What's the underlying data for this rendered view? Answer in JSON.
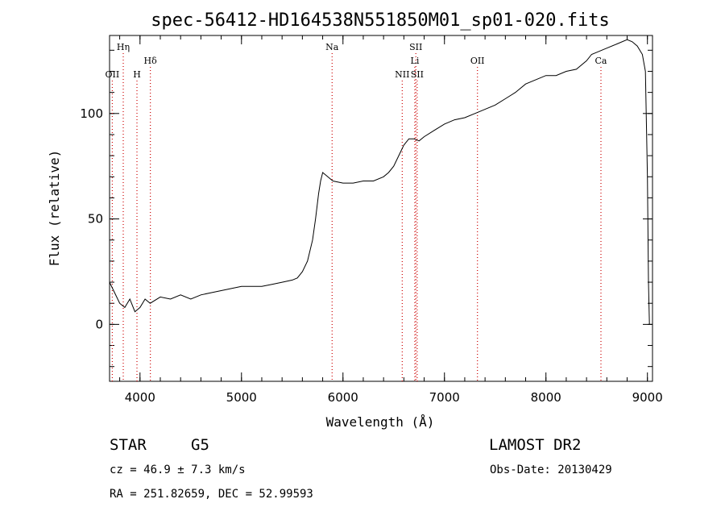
{
  "chart_data": {
    "type": "line",
    "title": "spec-56412-HD164538N551850M01_sp01-020.fits",
    "xlabel": "Wavelength (Å)",
    "ylabel": "Flux (relative)",
    "xlim": [
      3700,
      9050
    ],
    "ylim": [
      -27,
      137
    ],
    "xticks": [
      4000,
      5000,
      6000,
      7000,
      8000,
      9000
    ],
    "yticks": [
      0,
      50,
      100
    ],
    "x_minor_step": 200,
    "y_minor_step": 10,
    "grid": false,
    "line_color": "#000000",
    "marker_color": "#cc0000",
    "series": [
      {
        "x": [
          3700,
          3750,
          3800,
          3850,
          3900,
          3950,
          4000,
          4050,
          4100,
          4200,
          4300,
          4400,
          4500,
          4600,
          4700,
          4800,
          4900,
          5000,
          5100,
          5200,
          5300,
          5400,
          5500,
          5550,
          5600,
          5650,
          5700,
          5730,
          5760,
          5780,
          5800,
          5850,
          5900,
          6000,
          6100,
          6200,
          6300,
          6400,
          6450,
          6500,
          6550,
          6600,
          6650,
          6700,
          6750,
          6800,
          6900,
          7000,
          7100,
          7200,
          7300,
          7400,
          7500,
          7600,
          7700,
          7800,
          7900,
          8000,
          8100,
          8200,
          8300,
          8400,
          8450,
          8500,
          8550,
          8600,
          8700,
          8800,
          8850,
          8900,
          8950,
          8980,
          9000,
          9010,
          9020
        ],
        "y": [
          20,
          15,
          10,
          8,
          12,
          6,
          8,
          12,
          10,
          13,
          12,
          14,
          12,
          14,
          15,
          16,
          17,
          18,
          18,
          18,
          19,
          20,
          21,
          22,
          25,
          30,
          40,
          50,
          62,
          68,
          72,
          70,
          68,
          67,
          67,
          68,
          68,
          70,
          72,
          75,
          80,
          85,
          88,
          88,
          87,
          89,
          92,
          95,
          97,
          98,
          100,
          102,
          104,
          107,
          110,
          114,
          116,
          118,
          118,
          120,
          121,
          125,
          128,
          129,
          130,
          131,
          133,
          135,
          134,
          132,
          128,
          120,
          70,
          20,
          0
        ]
      }
    ],
    "line_markers": [
      {
        "label": "Hη",
        "x": 3835,
        "row": 0
      },
      {
        "label": "OII",
        "x": 3727,
        "row": 2
      },
      {
        "label": "H",
        "x": 3970,
        "row": 2
      },
      {
        "label": "Hδ",
        "x": 4102,
        "row": 1
      },
      {
        "label": "Na",
        "x": 5893,
        "row": 0
      },
      {
        "label": "NII",
        "x": 6584,
        "row": 2
      },
      {
        "label": "SII",
        "x": 6718,
        "row": 0
      },
      {
        "label": "Li",
        "x": 6708,
        "row": 1
      },
      {
        "label": "SII",
        "x": 6731,
        "row": 2
      },
      {
        "label": "OII",
        "x": 7325,
        "row": 1
      },
      {
        "label": "Ca",
        "x": 8542,
        "row": 1
      }
    ]
  },
  "info": {
    "class_label": "STAR",
    "subclass_label": "G5",
    "survey": "LAMOST DR2",
    "cz": "cz = 46.9 ± 7.3 km/s",
    "obs_date": "Obs-Date: 20130429",
    "radec": "RA = 251.82659, DEC =  52.99593"
  }
}
